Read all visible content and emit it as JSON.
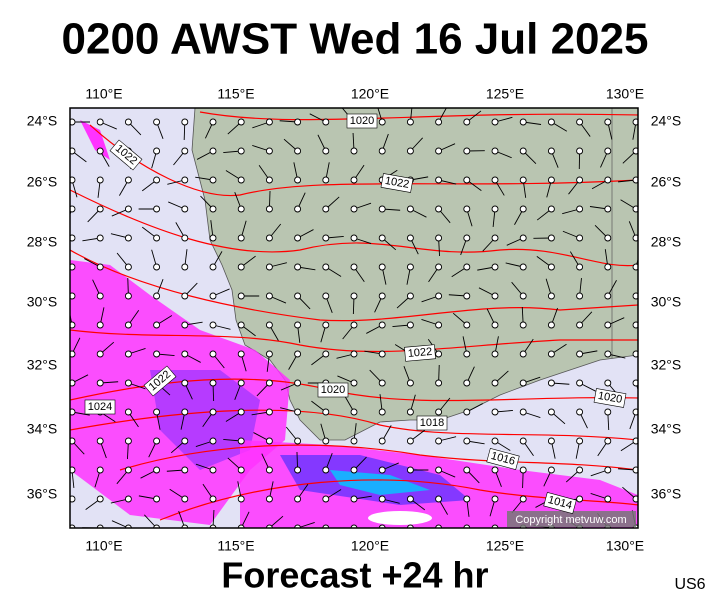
{
  "header": {
    "title": "0200 AWST Wed 16 Jul 2025"
  },
  "lon_labels": [
    "110°E",
    "115°E",
    "120°E",
    "125°E",
    "130°E"
  ],
  "lat_labels": [
    "24°S",
    "26°S",
    "28°S",
    "30°S",
    "32°S",
    "34°S",
    "36°S"
  ],
  "isobar_labels": [
    "1020",
    "1022",
    "1022",
    "1022",
    "1020",
    "1018",
    "1016",
    "1014",
    "1020",
    "1022",
    "1024"
  ],
  "copyright": "Copyright metvuw.com",
  "footer": {
    "forecast": "Forecast +24 hr",
    "code": "US6"
  }
}
